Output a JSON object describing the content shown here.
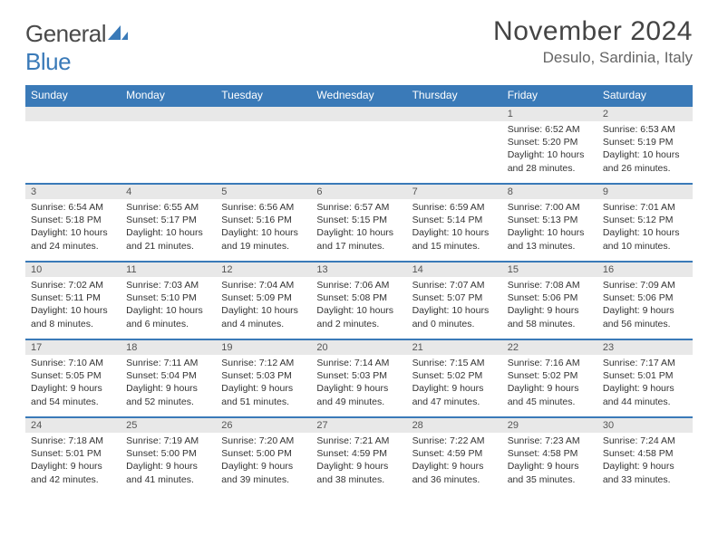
{
  "brand": {
    "text1": "General",
    "text2": "Blue"
  },
  "title": "November 2024",
  "location": "Desulo, Sardinia, Italy",
  "colors": {
    "header_bg": "#3a7ab8",
    "header_fg": "#ffffff",
    "daynum_bg": "#e8e8e8",
    "border": "#3a7ab8",
    "text": "#333333"
  },
  "day_headers": [
    "Sunday",
    "Monday",
    "Tuesday",
    "Wednesday",
    "Thursday",
    "Friday",
    "Saturday"
  ],
  "weeks": [
    [
      {
        "n": "",
        "sr": "",
        "ss": "",
        "dl": ""
      },
      {
        "n": "",
        "sr": "",
        "ss": "",
        "dl": ""
      },
      {
        "n": "",
        "sr": "",
        "ss": "",
        "dl": ""
      },
      {
        "n": "",
        "sr": "",
        "ss": "",
        "dl": ""
      },
      {
        "n": "",
        "sr": "",
        "ss": "",
        "dl": ""
      },
      {
        "n": "1",
        "sr": "Sunrise: 6:52 AM",
        "ss": "Sunset: 5:20 PM",
        "dl": "Daylight: 10 hours and 28 minutes."
      },
      {
        "n": "2",
        "sr": "Sunrise: 6:53 AM",
        "ss": "Sunset: 5:19 PM",
        "dl": "Daylight: 10 hours and 26 minutes."
      }
    ],
    [
      {
        "n": "3",
        "sr": "Sunrise: 6:54 AM",
        "ss": "Sunset: 5:18 PM",
        "dl": "Daylight: 10 hours and 24 minutes."
      },
      {
        "n": "4",
        "sr": "Sunrise: 6:55 AM",
        "ss": "Sunset: 5:17 PM",
        "dl": "Daylight: 10 hours and 21 minutes."
      },
      {
        "n": "5",
        "sr": "Sunrise: 6:56 AM",
        "ss": "Sunset: 5:16 PM",
        "dl": "Daylight: 10 hours and 19 minutes."
      },
      {
        "n": "6",
        "sr": "Sunrise: 6:57 AM",
        "ss": "Sunset: 5:15 PM",
        "dl": "Daylight: 10 hours and 17 minutes."
      },
      {
        "n": "7",
        "sr": "Sunrise: 6:59 AM",
        "ss": "Sunset: 5:14 PM",
        "dl": "Daylight: 10 hours and 15 minutes."
      },
      {
        "n": "8",
        "sr": "Sunrise: 7:00 AM",
        "ss": "Sunset: 5:13 PM",
        "dl": "Daylight: 10 hours and 13 minutes."
      },
      {
        "n": "9",
        "sr": "Sunrise: 7:01 AM",
        "ss": "Sunset: 5:12 PM",
        "dl": "Daylight: 10 hours and 10 minutes."
      }
    ],
    [
      {
        "n": "10",
        "sr": "Sunrise: 7:02 AM",
        "ss": "Sunset: 5:11 PM",
        "dl": "Daylight: 10 hours and 8 minutes."
      },
      {
        "n": "11",
        "sr": "Sunrise: 7:03 AM",
        "ss": "Sunset: 5:10 PM",
        "dl": "Daylight: 10 hours and 6 minutes."
      },
      {
        "n": "12",
        "sr": "Sunrise: 7:04 AM",
        "ss": "Sunset: 5:09 PM",
        "dl": "Daylight: 10 hours and 4 minutes."
      },
      {
        "n": "13",
        "sr": "Sunrise: 7:06 AM",
        "ss": "Sunset: 5:08 PM",
        "dl": "Daylight: 10 hours and 2 minutes."
      },
      {
        "n": "14",
        "sr": "Sunrise: 7:07 AM",
        "ss": "Sunset: 5:07 PM",
        "dl": "Daylight: 10 hours and 0 minutes."
      },
      {
        "n": "15",
        "sr": "Sunrise: 7:08 AM",
        "ss": "Sunset: 5:06 PM",
        "dl": "Daylight: 9 hours and 58 minutes."
      },
      {
        "n": "16",
        "sr": "Sunrise: 7:09 AM",
        "ss": "Sunset: 5:06 PM",
        "dl": "Daylight: 9 hours and 56 minutes."
      }
    ],
    [
      {
        "n": "17",
        "sr": "Sunrise: 7:10 AM",
        "ss": "Sunset: 5:05 PM",
        "dl": "Daylight: 9 hours and 54 minutes."
      },
      {
        "n": "18",
        "sr": "Sunrise: 7:11 AM",
        "ss": "Sunset: 5:04 PM",
        "dl": "Daylight: 9 hours and 52 minutes."
      },
      {
        "n": "19",
        "sr": "Sunrise: 7:12 AM",
        "ss": "Sunset: 5:03 PM",
        "dl": "Daylight: 9 hours and 51 minutes."
      },
      {
        "n": "20",
        "sr": "Sunrise: 7:14 AM",
        "ss": "Sunset: 5:03 PM",
        "dl": "Daylight: 9 hours and 49 minutes."
      },
      {
        "n": "21",
        "sr": "Sunrise: 7:15 AM",
        "ss": "Sunset: 5:02 PM",
        "dl": "Daylight: 9 hours and 47 minutes."
      },
      {
        "n": "22",
        "sr": "Sunrise: 7:16 AM",
        "ss": "Sunset: 5:02 PM",
        "dl": "Daylight: 9 hours and 45 minutes."
      },
      {
        "n": "23",
        "sr": "Sunrise: 7:17 AM",
        "ss": "Sunset: 5:01 PM",
        "dl": "Daylight: 9 hours and 44 minutes."
      }
    ],
    [
      {
        "n": "24",
        "sr": "Sunrise: 7:18 AM",
        "ss": "Sunset: 5:01 PM",
        "dl": "Daylight: 9 hours and 42 minutes."
      },
      {
        "n": "25",
        "sr": "Sunrise: 7:19 AM",
        "ss": "Sunset: 5:00 PM",
        "dl": "Daylight: 9 hours and 41 minutes."
      },
      {
        "n": "26",
        "sr": "Sunrise: 7:20 AM",
        "ss": "Sunset: 5:00 PM",
        "dl": "Daylight: 9 hours and 39 minutes."
      },
      {
        "n": "27",
        "sr": "Sunrise: 7:21 AM",
        "ss": "Sunset: 4:59 PM",
        "dl": "Daylight: 9 hours and 38 minutes."
      },
      {
        "n": "28",
        "sr": "Sunrise: 7:22 AM",
        "ss": "Sunset: 4:59 PM",
        "dl": "Daylight: 9 hours and 36 minutes."
      },
      {
        "n": "29",
        "sr": "Sunrise: 7:23 AM",
        "ss": "Sunset: 4:58 PM",
        "dl": "Daylight: 9 hours and 35 minutes."
      },
      {
        "n": "30",
        "sr": "Sunrise: 7:24 AM",
        "ss": "Sunset: 4:58 PM",
        "dl": "Daylight: 9 hours and 33 minutes."
      }
    ]
  ]
}
